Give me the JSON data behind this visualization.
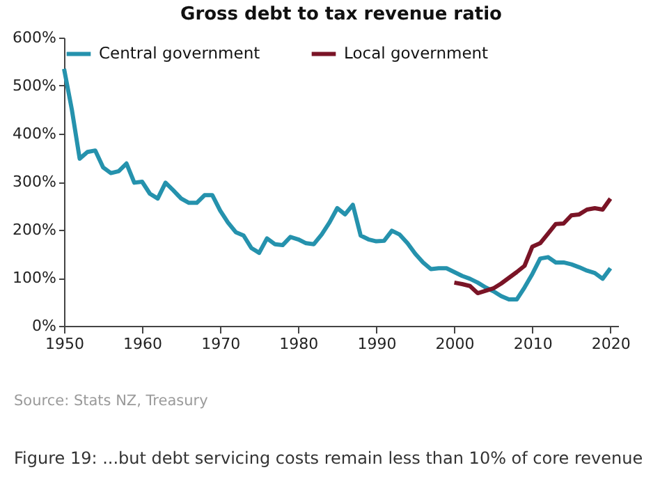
{
  "chart_data": {
    "type": "line",
    "title": "Gross debt to tax revenue ratio",
    "x": [
      1950,
      1951,
      1952,
      1953,
      1954,
      1955,
      1956,
      1957,
      1958,
      1959,
      1960,
      1961,
      1962,
      1963,
      1964,
      1965,
      1966,
      1967,
      1968,
      1969,
      1970,
      1971,
      1972,
      1973,
      1974,
      1975,
      1976,
      1977,
      1978,
      1979,
      1980,
      1981,
      1982,
      1983,
      1984,
      1985,
      1986,
      1987,
      1988,
      1989,
      1990,
      1991,
      1992,
      1993,
      1994,
      1995,
      1996,
      1997,
      1998,
      1999,
      2000,
      2001,
      2002,
      2003,
      2004,
      2005,
      2006,
      2007,
      2008,
      2009,
      2010,
      2011,
      2012,
      2013,
      2014,
      2015,
      2016,
      2017,
      2018,
      2019,
      2020
    ],
    "series": [
      {
        "name": "Central government",
        "color": "#2592ad",
        "values": [
          535,
          450,
          348,
          362,
          365,
          330,
          318,
          322,
          338,
          298,
          300,
          275,
          265,
          298,
          282,
          265,
          256,
          256,
          272,
          272,
          240,
          215,
          195,
          188,
          162,
          152,
          182,
          170,
          168,
          185,
          180,
          172,
          170,
          190,
          215,
          245,
          232,
          252,
          188,
          180,
          176,
          177,
          198,
          190,
          172,
          150,
          132,
          118,
          120,
          120,
          112,
          104,
          98,
          90,
          80,
          72,
          62,
          55,
          55,
          80,
          108,
          140,
          143,
          132,
          132,
          128,
          122,
          115,
          110,
          98,
          120
        ]
      },
      {
        "name": "Local government",
        "color": "#7a1426",
        "x": [
          2000,
          2001,
          2002,
          2003,
          2004,
          2005,
          2006,
          2007,
          2008,
          2009,
          2010,
          2011,
          2012,
          2013,
          2014,
          2015,
          2016,
          2017,
          2018,
          2019,
          2020
        ],
        "values": [
          90,
          87,
          83,
          68,
          73,
          78,
          88,
          100,
          112,
          125,
          165,
          172,
          192,
          212,
          213,
          230,
          232,
          242,
          245,
          242,
          265
        ]
      }
    ],
    "xlim": [
      1950,
      2021
    ],
    "xticks": [
      1950,
      1960,
      1970,
      1980,
      1990,
      2000,
      2010,
      2020
    ],
    "ylim": [
      0,
      600
    ],
    "yticks": [
      {
        "value": 0,
        "label": "0%"
      },
      {
        "value": 100,
        "label": "100%"
      },
      {
        "value": 200,
        "label": "200%"
      },
      {
        "value": 300,
        "label": "300%"
      },
      {
        "value": 400,
        "label": "400%"
      },
      {
        "value": 500,
        "label": "500%"
      },
      {
        "value": 600,
        "label": "600%"
      }
    ],
    "grid": false,
    "legend": "top",
    "marker": "none",
    "line_style": "solid",
    "annotations": [
      "Source: Stats NZ, Treasury",
      "Figure 19: ...but debt servicing costs remain less than 10% of core revenue"
    ]
  }
}
